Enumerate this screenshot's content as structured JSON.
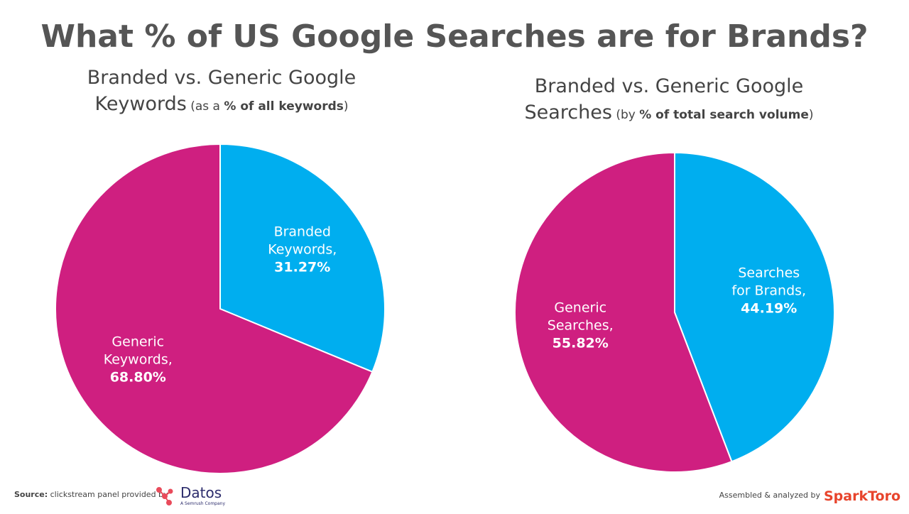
{
  "title": "What % of US Google Searches are for Brands?",
  "chart_data": [
    {
      "type": "pie",
      "title_lines": [
        "Branded vs. Generic Google",
        "Keywords"
      ],
      "subtitle_parts": [
        " (as a ",
        "% of all keywords",
        ")"
      ],
      "categories": [
        "Branded Keywords,",
        "Generic Keywords,"
      ],
      "values": [
        31.27,
        68.8
      ],
      "value_labels": [
        "31.27%",
        "68.80%"
      ],
      "colors": [
        "#00aeef",
        "#cf1f80"
      ]
    },
    {
      "type": "pie",
      "title_lines": [
        "Branded vs. Generic Google",
        "Searches"
      ],
      "subtitle_parts": [
        " (by ",
        "% of total search volume",
        ")"
      ],
      "categories": [
        "Searches for Brands,",
        "Generic Searches,"
      ],
      "values": [
        44.19,
        55.82
      ],
      "value_labels": [
        "44.19%",
        "55.82%"
      ],
      "colors": [
        "#00aeef",
        "#cf1f80"
      ]
    }
  ],
  "footer": {
    "source_label": "Source:",
    "source_text": " clickstream panel provided by",
    "datos": "Datos",
    "datos_tag": "A Semrush Company",
    "assembled": "Assembled & analyzed by",
    "sparktoro": "SparkToro"
  }
}
